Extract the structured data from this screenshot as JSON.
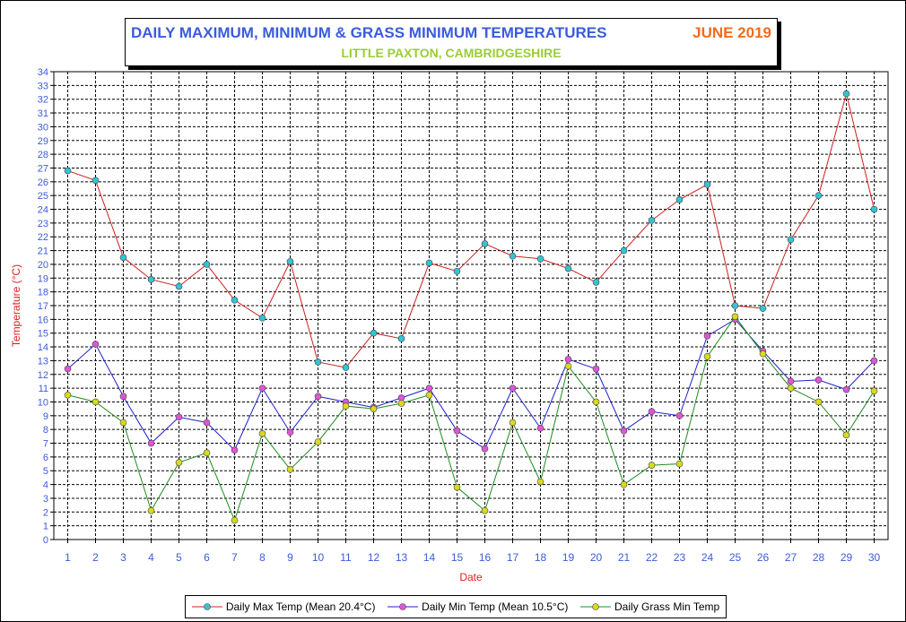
{
  "title": {
    "main": "DAILY MAXIMUM, MINIMUM & GRASS MINIMUM TEMPERATURES",
    "month": "JUNE 2019",
    "subtitle": "LITTLE PAXTON, CAMBRIDGESHIRE"
  },
  "colors": {
    "title": "#3b5bdb",
    "month": "#f26b1d",
    "subtitle": "#9acd32",
    "axis_labels": "#e02020",
    "tick_labels": "#3b5bdb"
  },
  "chart_data": {
    "type": "line",
    "xlabel": "Date",
    "ylabel": "Temperature (°C)",
    "ylim": [
      0,
      34
    ],
    "xlim": [
      1,
      30
    ],
    "grid": true,
    "legend_position": "bottom",
    "categories": [
      1,
      2,
      3,
      4,
      5,
      6,
      7,
      8,
      9,
      10,
      11,
      12,
      13,
      14,
      15,
      16,
      17,
      18,
      19,
      20,
      21,
      22,
      23,
      24,
      25,
      26,
      27,
      28,
      29,
      30
    ],
    "series": [
      {
        "name": "Daily Max Temp (Mean 20.4°C)",
        "line_color": "#cc1f1f",
        "marker_color": "#33c4d4",
        "values": [
          26.8,
          26.1,
          20.5,
          18.9,
          18.4,
          20.0,
          17.4,
          16.1,
          20.2,
          12.9,
          12.5,
          15.0,
          14.6,
          20.1,
          19.5,
          21.5,
          20.6,
          20.4,
          19.7,
          18.7,
          21.0,
          23.2,
          24.7,
          25.8,
          17.0,
          16.8,
          21.8,
          25.0,
          32.4,
          24.0
        ]
      },
      {
        "name": "Daily Min Temp (Mean 10.5°C)",
        "line_color": "#1f1fcc",
        "marker_color": "#e055d8",
        "values": [
          12.4,
          14.2,
          10.4,
          7.0,
          8.9,
          8.5,
          6.5,
          11.0,
          7.8,
          10.4,
          10.0,
          9.6,
          10.3,
          11.0,
          7.9,
          6.6,
          11.0,
          8.1,
          13.1,
          12.4,
          7.9,
          9.3,
          9.0,
          14.8,
          16.0,
          13.7,
          11.5,
          11.6,
          10.9,
          13.0
        ]
      },
      {
        "name": "Daily Grass Min Temp",
        "line_color": "#1f8c1f",
        "marker_color": "#d9d91f",
        "values": [
          10.5,
          10.0,
          8.5,
          2.1,
          5.6,
          6.3,
          1.4,
          7.7,
          5.1,
          7.1,
          9.7,
          9.5,
          9.9,
          10.5,
          3.8,
          2.1,
          8.5,
          4.2,
          12.6,
          10.0,
          4.0,
          5.4,
          5.5,
          13.3,
          16.2,
          13.5,
          11.0,
          10.0,
          7.6,
          10.8
        ]
      }
    ]
  }
}
